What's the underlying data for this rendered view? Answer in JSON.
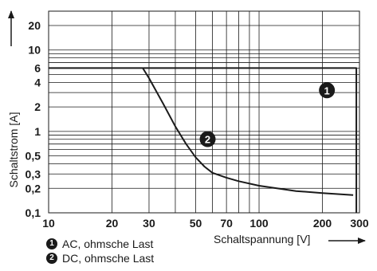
{
  "chart_data": {
    "type": "line",
    "xscale": "log",
    "yscale": "log",
    "xlim": [
      10,
      300
    ],
    "ylim": [
      0.1,
      30
    ],
    "grid": true,
    "xlabel": "Schaltspannung [V]",
    "ylabel": "Schaltstrom [A]",
    "x_ticks": [
      10,
      20,
      30,
      50,
      70,
      100,
      200,
      300
    ],
    "x_tick_labels": [
      "10",
      "20",
      "30",
      "50",
      "70",
      "100",
      "200",
      "300"
    ],
    "y_ticks": [
      0.1,
      0.2,
      0.3,
      0.5,
      1,
      2,
      4,
      6,
      10,
      20
    ],
    "y_tick_labels": [
      "0,1",
      "0,2",
      "0,3",
      "0,5",
      "1",
      "2",
      "4",
      "6",
      "10",
      "20"
    ],
    "series": [
      {
        "marker": "1",
        "legend": "AC, ohmsche Last",
        "x": [
          10,
          290,
          290
        ],
        "y": [
          6,
          6,
          0.1
        ]
      },
      {
        "marker": "2",
        "legend": "DC, ohmsche Last",
        "x": [
          28,
          30,
          35,
          40,
          45,
          50,
          55,
          60,
          70,
          80,
          100,
          150,
          200,
          280
        ],
        "y": [
          6,
          4.5,
          2.2,
          1.15,
          0.7,
          0.48,
          0.37,
          0.31,
          0.27,
          0.245,
          0.215,
          0.185,
          0.175,
          0.165
        ]
      }
    ]
  }
}
